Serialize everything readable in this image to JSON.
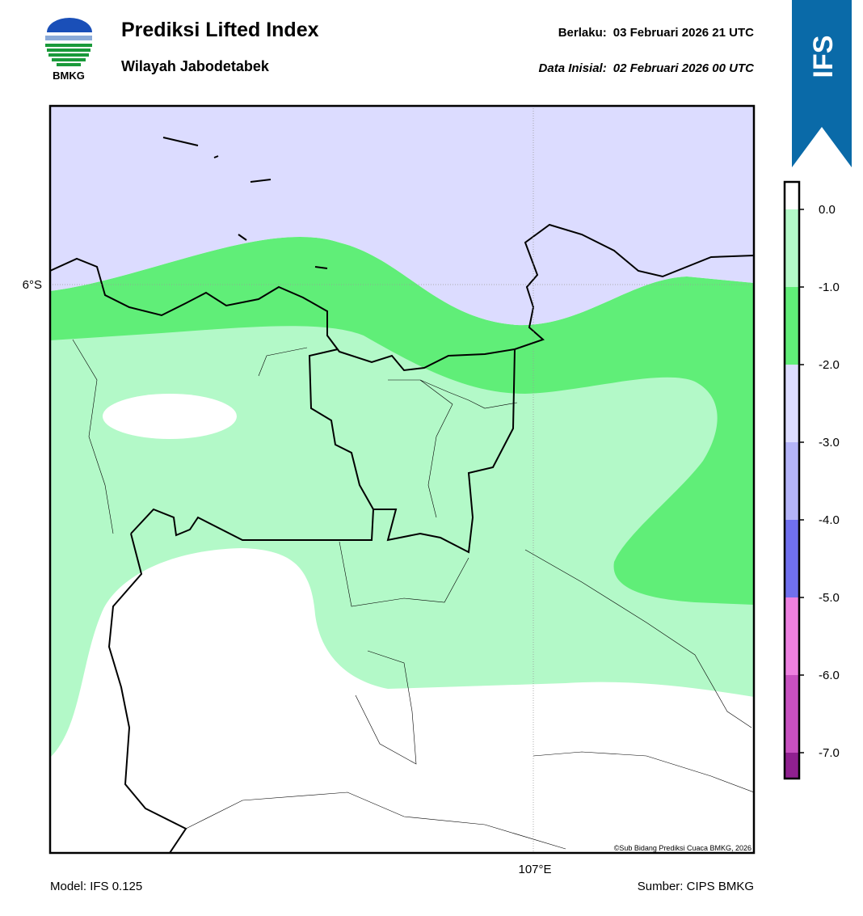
{
  "header": {
    "logo_text": "BMKG",
    "title": "Prediksi Lifted Index",
    "subtitle": "Wilayah Jabodetabek",
    "valid_label": "Berlaku:",
    "valid_time": "03 Februari 2026 21 UTC",
    "init_label": "Data Inisial:",
    "init_time": "02 Februari 2026 00 UTC"
  },
  "badge": "IFS",
  "map": {
    "lat_label": "6°S",
    "lon_label": "107°E",
    "credit": "©Sub Bidang Prediksi Cuaca BMKG, 2026",
    "fill_colors": {
      "stable": "#ffffff",
      "weak": "#b3f9c8",
      "moderate": "#60ee78",
      "neutral": "#dcdcff"
    }
  },
  "colorbar": {
    "colors": [
      "#ffffff",
      "#b3f9c8",
      "#60ee78",
      "#dcdcff",
      "#b4b4f8",
      "#7070ee",
      "#ee80e0",
      "#c850c0",
      "#902090"
    ],
    "tick_labels": [
      "0.0",
      "-1.0",
      "-2.0",
      "-3.0",
      "-4.0",
      "-5.0",
      "-6.0",
      "-7.0"
    ]
  },
  "footer": {
    "model": "Model: IFS 0.125",
    "source": "Sumber: CIPS BMKG"
  }
}
